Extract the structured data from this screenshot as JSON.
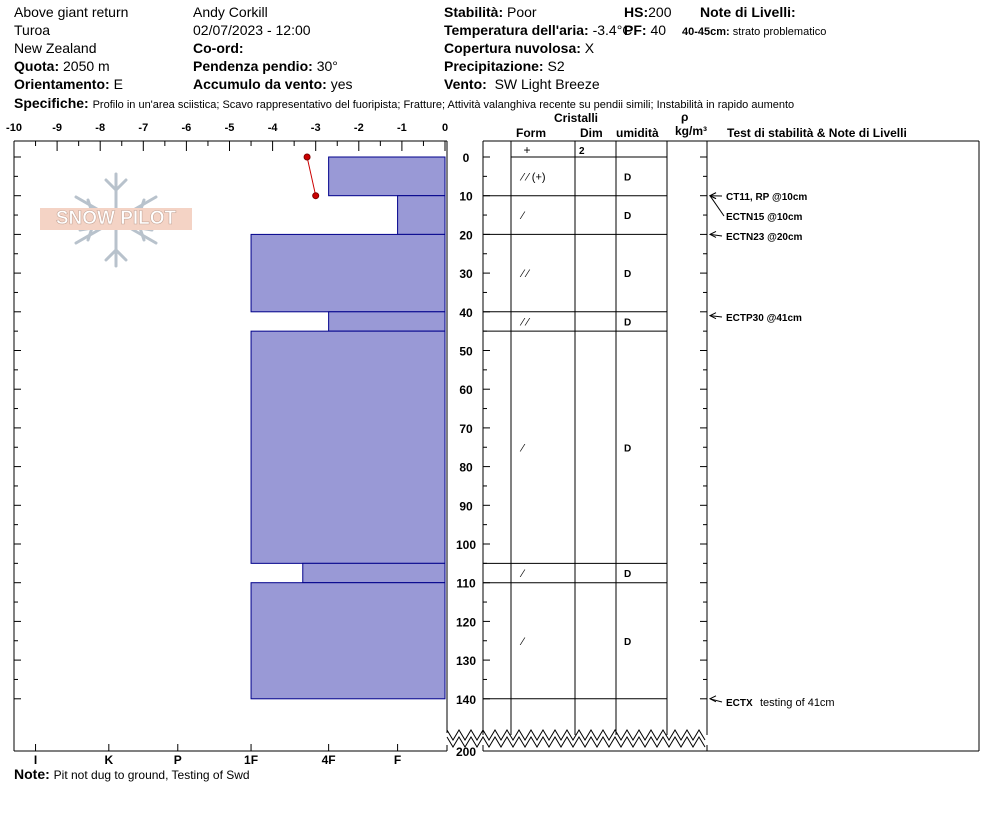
{
  "header": {
    "location": "Above giant return",
    "area": "Turoa",
    "country": "New Zealand",
    "quota_label": "Quota:",
    "quota": "2050 m",
    "orient_label": "Orientamento:",
    "orient": "E",
    "observer": "Andy Corkill",
    "datetime": "02/07/2023 - 12:00",
    "coord_label": "Co-ord:",
    "slope_label": "Pendenza pendio:",
    "slope": "30°",
    "wind_load_label": "Accumulo da vento:",
    "wind_load": "yes",
    "stability_label": "Stabilità:",
    "stability": "Poor",
    "air_temp_label": "Temperatura dell'aria:",
    "air_temp": "-3.4°C",
    "cloud_label": "Copertura nuvolosa:",
    "cloud": "X",
    "precip_label": "Precipitazione:",
    "precip": "S2",
    "wind_label": "Vento:",
    "wind": "SW Light Breeze",
    "hs_label": "HS:",
    "hs": "200",
    "pf_label": "PF:",
    "pf": "40",
    "notes_label": "Note di Livelli:",
    "notes_depth": "40-45cm:",
    "notes_text": "strato problematico",
    "spec_label": "Specifiche:",
    "spec_text": "Profilo in un'area sciistica; Scavo rappresentativo del fuoripista; Fratture; Attività valanghiva recente su pendii simili; Instabilità in rapido aumento"
  },
  "logo": {
    "text": "SNOW PILOT"
  },
  "footer": {
    "note_label": "Note:",
    "note_text": "Pit not dug to ground, Testing of Swd"
  },
  "columns": {
    "cristalli": "Cristalli",
    "form": "Form",
    "dim": "Dim",
    "umidita": "umidità",
    "rho": "ρ",
    "density_unit": "kg/m³",
    "tests": "Test di stabilità & Note di Livelli"
  },
  "chart_data": {
    "type": "bar",
    "orientation": "horizontal",
    "depth_axis": {
      "label": "",
      "range": [
        0,
        200
      ],
      "broken_after": 140,
      "ticks": [
        0,
        10,
        20,
        30,
        40,
        50,
        60,
        70,
        80,
        90,
        100,
        110,
        120,
        130,
        140,
        200
      ]
    },
    "temperature_axis": {
      "range": [
        -10,
        0
      ],
      "ticks": [
        "-10",
        "-9",
        "-8",
        "-7",
        "-6",
        "-5",
        "-4",
        "-3",
        "-2",
        "-1",
        "0"
      ]
    },
    "hardness_axis": {
      "ticks": [
        "I",
        "K",
        "P",
        "1F",
        "4F",
        "F"
      ],
      "positions": [
        9.5,
        7.8,
        6.2,
        4.5,
        2.7,
        1.1
      ]
    },
    "hardness_profile": [
      {
        "top": 0,
        "bottom": 10,
        "hardness": 2.7
      },
      {
        "top": 10,
        "bottom": 20,
        "hardness": 1.1
      },
      {
        "top": 20,
        "bottom": 40,
        "hardness": 4.5
      },
      {
        "top": 40,
        "bottom": 45,
        "hardness": 2.7
      },
      {
        "top": 45,
        "bottom": 105,
        "hardness": 4.5
      },
      {
        "top": 105,
        "bottom": 110,
        "hardness": 3.3
      },
      {
        "top": 110,
        "bottom": 140,
        "hardness": 4.5
      }
    ],
    "temperature_profile": [
      {
        "depth": 0,
        "temp": -3.2
      },
      {
        "depth": 10,
        "temp": -3.0
      }
    ],
    "layers": [
      {
        "top": 0,
        "bottom": 10,
        "form": "⁄ ⁄ (+)",
        "moisture": "D"
      },
      {
        "top": 10,
        "bottom": 20,
        "form": "⁄",
        "moisture": "D"
      },
      {
        "top": 20,
        "bottom": 40,
        "form": "⁄ ⁄",
        "moisture": "D"
      },
      {
        "top": 40,
        "bottom": 45,
        "form": "⁄ ⁄",
        "moisture": "D"
      },
      {
        "top": 45,
        "bottom": 105,
        "form": "⁄",
        "moisture": "D"
      },
      {
        "top": 105,
        "bottom": 110,
        "form": "⁄",
        "moisture": "D"
      },
      {
        "top": 110,
        "bottom": 140,
        "form": "⁄",
        "moisture": "D"
      }
    ],
    "surface_row": {
      "form": "+",
      "dim": "2"
    },
    "tests": [
      {
        "depth": 10,
        "text": "CT11, RP @10cm",
        "bold": true
      },
      {
        "depth": 10,
        "text": "ECTN15 @10cm",
        "bold": true
      },
      {
        "depth": 20,
        "text": "ECTN23 @20cm",
        "bold": true
      },
      {
        "depth": 41,
        "text": "ECTP30 @41cm",
        "bold": true
      },
      {
        "depth": 140,
        "text": "ECTX",
        "suffix": "testing of 41cm",
        "bold": true
      }
    ]
  }
}
